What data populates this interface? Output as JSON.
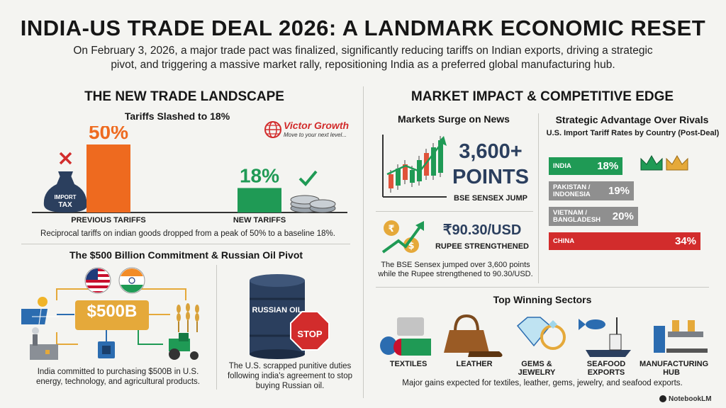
{
  "header": {
    "title": "INDIA-US TRADE DEAL 2026: A LANDMARK ECONOMIC RESET",
    "subtitle": "On February 3, 2026, a major trade pact was finalized, significantly reducing tariffs on Indian exports, driving a strategic pivot, and triggering a massive market rally, repositioning India as a preferred global manufacturing hub."
  },
  "left": {
    "heading": "THE NEW TRADE LANDSCAPE",
    "tariffs_heading": "Tariffs Slashed to 18%",
    "tax_bag_label": "IMPORT TAX",
    "caption": "Reciprocal tariffs on indian goods dropped from a peak of 50% to a baseline 18%.",
    "commitment_heading": "The $500 Billion Commitment & Russian Oil Pivot",
    "commitment_amount": "$500B",
    "commitment_caption": "India committed to purchasing $500B in U.S. energy, technology, and agricultural products.",
    "barrel_label": "RUSSIAN OIL",
    "stop_label": "STOP",
    "oil_caption": "The U.S. scrapped punitive duties following india's agreement to stop buying Russian oil."
  },
  "watermark": {
    "brand": "Victor Growth",
    "tagline": "Move to your next level..."
  },
  "right": {
    "heading": "MARKET IMPACT & COMPETITIVE EDGE",
    "markets_heading": "Markets Surge on News",
    "sensex_value": "3,600+",
    "sensex_unit": "POINTS",
    "sensex_label": "BSE SENSEX JUMP",
    "rupee_value": "₹90.30/USD",
    "rupee_label": "RUPEE STRENGTHENED",
    "markets_caption": "The BSE Sensex jumped over 3,600 points while the Rupee strengthened to 90.30/USD.",
    "rivals_heading": "Strategic Advantage Over Rivals",
    "rivals_subheading": "U.S. Import Tariff Rates by Country (Post-Deal)",
    "sectors_heading": "Top Winning Sectors",
    "sectors": [
      {
        "label": "TEXTILES",
        "icon": "textiles-icon"
      },
      {
        "label": "LEATHER",
        "icon": "leather-icon"
      },
      {
        "label": "GEMS & JEWELRY",
        "icon": "gems-icon"
      },
      {
        "label": "SEAFOOD EXPORTS",
        "icon": "seafood-icon"
      },
      {
        "label": "MANUFACTURING HUB",
        "icon": "manufacturing-icon"
      }
    ],
    "sectors_caption": "Major gains expected for textiles, leather, gems, jewelry, and seafood exports."
  },
  "footer": {
    "brand": "NotebookLM"
  },
  "colors": {
    "orange": "#ee6a1f",
    "green": "#1f9a55",
    "grey": "#8f8f8f",
    "red": "#d22c2c",
    "navy": "#2b3f5e"
  },
  "chart_data": [
    {
      "type": "bar",
      "title": "Tariffs Slashed to 18%",
      "categories": [
        "PREVIOUS TARIFFS",
        "NEW TARIFFS"
      ],
      "values": [
        50,
        18
      ],
      "value_labels": [
        "50%",
        "18%"
      ],
      "ylim": [
        0,
        50
      ]
    },
    {
      "type": "bar",
      "title": "U.S. Import Tariff Rates by Country (Post-Deal)",
      "orientation": "horizontal",
      "categories": [
        "INDIA",
        "PAKISTAN / INDONESIA",
        "VIETNAM / BANGLADESH",
        "CHINA"
      ],
      "values": [
        18,
        19,
        20,
        34
      ],
      "value_labels": [
        "18%",
        "19%",
        "20%",
        "34%"
      ],
      "ylim": [
        0,
        34
      ]
    }
  ]
}
